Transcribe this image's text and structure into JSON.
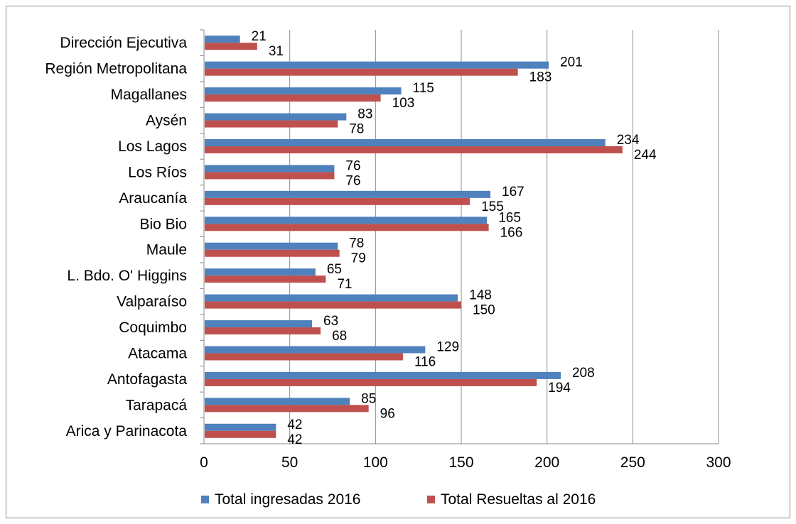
{
  "chart_data": {
    "type": "bar",
    "orientation": "horizontal",
    "categories": [
      "Dirección Ejecutiva",
      "Región Metropolitana",
      "Magallanes",
      "Aysén",
      "Los Lagos",
      "Los Ríos",
      "Araucanía",
      "Bio Bio",
      "Maule",
      "L. Bdo. O' Higgins",
      "Valparaíso",
      "Coquimbo",
      "Atacama",
      "Antofagasta",
      "Tarapacá",
      "Arica y Parinacota"
    ],
    "series": [
      {
        "name": "Total ingresadas 2016",
        "color": "#4f81bd",
        "values": [
          21,
          201,
          115,
          83,
          234,
          76,
          167,
          165,
          78,
          65,
          148,
          63,
          129,
          208,
          85,
          42
        ]
      },
      {
        "name": "Total Resueltas al 2016",
        "color": "#c0504d",
        "values": [
          31,
          183,
          103,
          78,
          244,
          76,
          155,
          166,
          79,
          71,
          150,
          68,
          116,
          194,
          96,
          42
        ]
      }
    ],
    "xlim": [
      0,
      300
    ],
    "xticks": [
      0,
      50,
      100,
      150,
      200,
      250,
      300
    ],
    "grid": "vertical",
    "legend_position": "bottom",
    "data_labels": true
  }
}
